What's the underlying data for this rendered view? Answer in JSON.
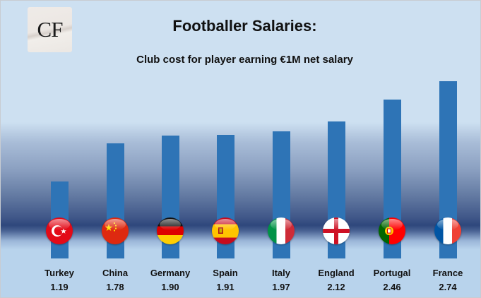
{
  "logo": {
    "text": "CF"
  },
  "chart_data": {
    "type": "bar",
    "title": "Footballer Salaries:",
    "subtitle": "Club cost for player earning €1M net salary",
    "categories": [
      "Turkey",
      "China",
      "Germany",
      "Spain",
      "Italy",
      "England",
      "Portugal",
      "France"
    ],
    "values": [
      1.19,
      1.78,
      1.9,
      1.91,
      1.97,
      2.12,
      2.46,
      2.74
    ],
    "value_labels": [
      "1.19",
      "1.78",
      "1.90",
      "1.91",
      "1.97",
      "2.12",
      "2.46",
      "2.74"
    ],
    "xlabel": "",
    "ylabel": "",
    "grid": false,
    "legend": "none",
    "bar_color": "#2e74b6",
    "icons": [
      "turkey-flag-icon",
      "china-flag-icon",
      "germany-flag-icon",
      "spain-flag-icon",
      "italy-flag-icon",
      "england-flag-icon",
      "portugal-flag-icon",
      "france-flag-icon"
    ]
  }
}
